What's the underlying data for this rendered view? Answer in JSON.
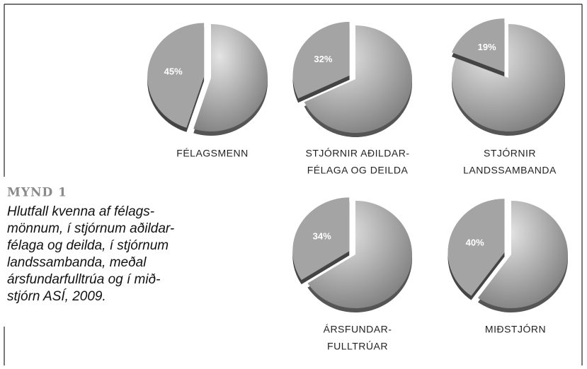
{
  "chart_data": [
    {
      "type": "pie",
      "title": [
        "FÉLAGSMENN"
      ],
      "values": [
        45
      ],
      "value_labels": [
        "45%"
      ],
      "color": "#a4a4a4"
    },
    {
      "type": "pie",
      "title": [
        "STJÓRNIR AÐILDAR-",
        "FÉLAGA OG DEILDA"
      ],
      "values": [
        32
      ],
      "value_labels": [
        "32%"
      ],
      "color": "#a4a4a4"
    },
    {
      "type": "pie",
      "title": [
        "STJÓRNIR",
        "LANDSSAMBANDA"
      ],
      "values": [
        19
      ],
      "value_labels": [
        "19%"
      ],
      "color": "#a4a4a4"
    },
    {
      "type": "pie",
      "title": [
        "ÁRSFUNDAR-",
        "FULLTRÚAR"
      ],
      "values": [
        34
      ],
      "value_labels": [
        "34%"
      ],
      "color": "#a4a4a4"
    },
    {
      "type": "pie",
      "title": [
        "MIÐSTJÓRN"
      ],
      "values": [
        40
      ],
      "value_labels": [
        "40%"
      ],
      "color": "#a4a4a4"
    }
  ],
  "figure": {
    "label": "MYND 1",
    "caption_lines": [
      "Hlutfall kvenna af félags-",
      "mönnum, í stjórnum aðildar-",
      "félaga og deilda, í stjórnum",
      "landssambanda, meðal",
      "ársfundarfulltrúa og í mið-",
      "stjórn ASÍ, 2009."
    ]
  }
}
